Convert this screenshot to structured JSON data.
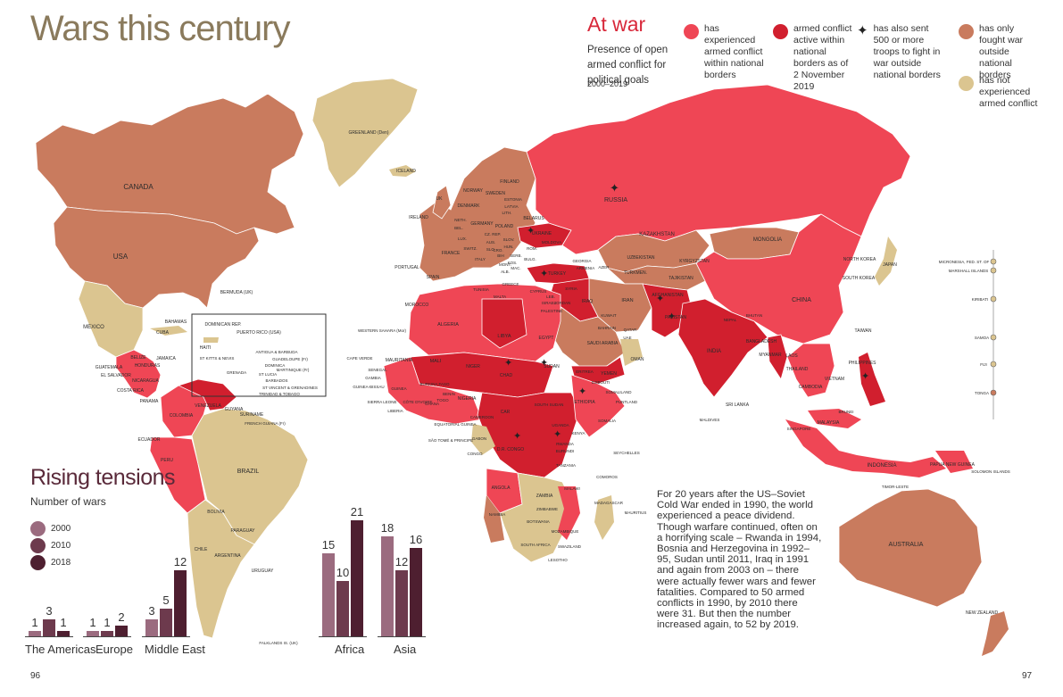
{
  "page": {
    "title": "Wars this century",
    "page_left": "96",
    "page_right": "97"
  },
  "legend": {
    "heading": "At war",
    "subtitle": "Presence of open armed conflict for political goals",
    "years": "2000–2019",
    "items": [
      {
        "key": "internal",
        "label": "has experienced armed conflict within national borders",
        "color": "#ef4655"
      },
      {
        "key": "active",
        "label": "armed conflict active within national borders as of 2 November 2019",
        "color": "#d11f2e"
      },
      {
        "key": "troops",
        "label": "has also sent 500 or more troops to fight in war outside national borders",
        "icon": "soldier-icon"
      },
      {
        "key": "outside",
        "label": "has only fought war outside national borders",
        "color": "#c97b5e"
      },
      {
        "key": "none",
        "label": "has not experienced armed conflict",
        "color": "#dbc590"
      }
    ]
  },
  "chart": {
    "title": "Rising tensions",
    "subtitle": "Number of wars",
    "series_labels": [
      "2000",
      "2010",
      "2018"
    ],
    "series_colors": [
      "#9b6b7f",
      "#6d3a4d",
      "#4e1f30"
    ]
  },
  "chart_data": {
    "type": "bar",
    "title": "Rising tensions",
    "ylabel": "Number of wars",
    "categories": [
      "The Americas",
      "Europe",
      "Middle East",
      "Africa",
      "Asia"
    ],
    "series": [
      {
        "name": "2000",
        "values": [
          1,
          1,
          3,
          15,
          18
        ]
      },
      {
        "name": "2010",
        "values": [
          3,
          1,
          5,
          10,
          12
        ]
      },
      {
        "name": "2018",
        "values": [
          1,
          2,
          12,
          21,
          16
        ]
      }
    ]
  },
  "essay": "For 20 years after the US–Soviet Cold War ended in 1990, the world experienced a peace dividend. Though warfare continued, often on a horrifying scale – Rwanda in 1994, Bosnia and Herzegovina in 1992–95, Sudan until 2011, Iraq in 1991 and again from 2003 on – there were actually fewer wars and fewer fatalities. Compared to 50 armed conflicts in 1990, by 2010 there were 31. But then the number increased again, to 52 by 2019.",
  "map": {
    "country_labels": {
      "canada": "CANADA",
      "usa": "USA",
      "greenland": "GREENLAND (Den)",
      "iceland": "ICELAND",
      "mexico": "MEXICO",
      "cuba": "CUBA",
      "bahamas": "BAHAMAS",
      "bermuda": "BERMUDA (UK)",
      "dominican": "DOMINICAN REP.",
      "puerto_rico": "PUERTO RICO (USA)",
      "haiti": "HAITI",
      "jamaica": "JAMAICA",
      "belize": "BELIZE",
      "guatemala": "GUATEMALA",
      "honduras": "HONDURAS",
      "el_salvador": "EL SALVADOR",
      "nicaragua": "NICARAGUA",
      "costa_rica": "COSTA RICA",
      "panama": "PANAMA",
      "antigua": "ANTIGUA & BARBUDA",
      "st_kitts": "ST KITTS & NEVIS",
      "guadeloupe": "GUADELOUPE (Fr)",
      "dominica": "DOMINICA",
      "martinique": "MARTINIQUE (Fr)",
      "st_lucia": "ST LUCIA",
      "barbados": "BARBADOS",
      "grenada": "GRENADA",
      "st_vincent": "ST VINCENT & GRENADINES",
      "trinidad": "TRINIDAD & TOBAGO",
      "venezuela": "VENEZUELA",
      "colombia": "COLOMBIA",
      "guyana": "GUYANA",
      "suriname": "SURINAME",
      "french_guiana": "FRENCH GUIANA (Fr)",
      "ecuador": "ECUADOR",
      "peru": "PERU",
      "brazil": "BRAZIL",
      "bolivia": "BOLIVIA",
      "paraguay": "PARAGUAY",
      "chile": "CHILE",
      "argentina": "ARGENTINA",
      "uruguay": "URUGUAY",
      "falklands": "FALKLANDS IS. (UK)",
      "ireland": "IRELAND",
      "uk": "UK",
      "norway": "NORWAY",
      "sweden": "SWEDEN",
      "finland": "FINLAND",
      "denmark": "DENMARK",
      "estonia": "ESTONIA",
      "latvia": "LATVIA",
      "lith": "LITH.",
      "belarus": "BELARUS",
      "poland": "POLAND",
      "germany": "GERMANY",
      "neth": "NETH.",
      "bel": "BEL.",
      "lux": "LUX.",
      "france": "FRANCE",
      "switz": "SWITZ.",
      "italy": "ITALY",
      "spain": "SPAIN",
      "portugal": "PORTUGAL",
      "ukraine": "UKRAINE",
      "moldova": "MOLDOVA",
      "romania": "ROM.",
      "hun": "HUN.",
      "slov": "SLOV.",
      "cz": "CZ. REP.",
      "aus": "AUS.",
      "bulg": "BULG.",
      "greece": "GREECE",
      "maced": "MAC.",
      "alb": "ALB.",
      "kos": "KOS.",
      "serb": "SERB.",
      "bih": "BIH",
      "monten": "MONT.",
      "cro": "CRO.",
      "slo": "SLO.",
      "malta": "MALTA",
      "cyprus": "CYPRUS",
      "turkey": "TURKEY",
      "russia": "RUSSIA",
      "georgia": "GEORGIA",
      "armenia": "ARMENIA",
      "azer": "AZER.",
      "kazakhstan": "KAZAKHSTAN",
      "uzbekistan": "UZBEKISTAN",
      "turkmen": "TURKMEN.",
      "kyrgyzstan": "KYRGYZSTAN",
      "tajikistan": "TAJIKISTAN",
      "mongolia": "MONGOLIA",
      "china": "CHINA",
      "north_korea": "NORTH KOREA",
      "south_korea": "SOUTH KOREA",
      "japan": "JAPAN",
      "taiwan": "TAIWAN",
      "afghanistan": "AFGHANISTAN",
      "pakistan": "PAKISTAN",
      "india": "INDIA",
      "nepal": "NEPAL",
      "bhutan": "BHUTAN",
      "bangladesh": "BANGLADESH",
      "myanmar": "MYANMAR",
      "laos": "LAOS",
      "thailand": "THAILAND",
      "cambodia": "CAMBODIA",
      "vietnam": "VIETNAM",
      "philippines": "PHILIPPINES",
      "malaysia": "MALAYSIA",
      "singapore": "SINGAPORE",
      "brunei": "BRUNEI",
      "indonesia": "INDONESIA",
      "timor": "TIMOR-LESTE",
      "png": "PAPUA NEW GUINEA",
      "solomon": "SOLOMON ISLANDS",
      "australia": "AUSTRALIA",
      "new_zealand": "NEW ZEALAND",
      "sri_lanka": "SRI LANKA",
      "maldives": "MALDIVES",
      "iran": "IRAN",
      "iraq": "IRAQ",
      "syria": "SYRIA",
      "leb": "LEB.",
      "israel": "ISRAEL",
      "jordan": "JORDAN",
      "palestine": "PALESTINE",
      "kuwait": "KUWAIT",
      "bahrain": "BAHRAIN",
      "qatar": "QATAR",
      "uae": "UAE",
      "saudi": "SAUDI ARABIA",
      "oman": "OMAN",
      "yemen": "YEMEN",
      "egypt": "EGYPT",
      "libya": "LIBYA",
      "tunisia": "TUNISIA",
      "algeria": "ALGERIA",
      "morocco": "MOROCCO",
      "western_sahara": "WESTERN SAHARA (Mor)",
      "mauritania": "MAURITANIA",
      "mali": "MALI",
      "niger": "NIGER",
      "chad": "CHAD",
      "sudan": "SUDAN",
      "south_sudan": "SOUTH SUDAN",
      "eritrea": "ERITREA",
      "djibouti": "DJIBOUTI",
      "ethiopia": "ETHIOPIA",
      "somaliland": "SOMALILAND",
      "puntland": "PUNTLAND",
      "somalia": "SOMALIA",
      "senegal": "SENEGAL",
      "gambia": "GAMBIA",
      "guinea_bissau": "GUINEA-BISSAU",
      "guinea": "GUINEA",
      "sierra_leone": "SIERRA LEONE",
      "liberia": "LIBERIA",
      "cote": "CÔTE D'IVOIRE",
      "burkina": "BURKINA FASO",
      "ghana": "GHANA",
      "togo": "TOGO",
      "benin": "BENIN",
      "nigeria": "NIGERIA",
      "cameroon": "CAMEROON",
      "car": "CAR",
      "eq_guinea": "EQUATORIAL GUINEA",
      "sao_tome": "SÃO TOMÉ & PRINCIPE",
      "gabon": "GABON",
      "congo": "CONGO",
      "dr_congo": "D.R. CONGO",
      "uganda": "UGANDA",
      "kenya": "KENYA",
      "rwanda": "RWANDA",
      "burundi": "BURUNDI",
      "tanzania": "TANZANIA",
      "angola": "ANGOLA",
      "zambia": "ZAMBIA",
      "malawi": "MALAWI",
      "zimbabwe": "ZIMBABWE",
      "mozambique": "MOZAMBIQUE",
      "namibia": "NAMIBIA",
      "botswana": "BOTSWANA",
      "south_africa": "SOUTH AFRICA",
      "swaziland": "SWAZILAND",
      "lesotho": "LESOTHO",
      "madagascar": "MADAGASCAR",
      "comoros": "COMOROS",
      "mauritius": "MAURITIUS",
      "seychelles": "SEYCHELLES",
      "cape_verde": "CAPE VERDE",
      "micronesia": "MICRONESIA, FED. ST. OF",
      "marshall": "MARSHALL ISLANDS",
      "kiribati": "KIRIBATI",
      "samoa": "SAMOA",
      "fiji": "FIJI",
      "tonga": "TONGA"
    }
  }
}
